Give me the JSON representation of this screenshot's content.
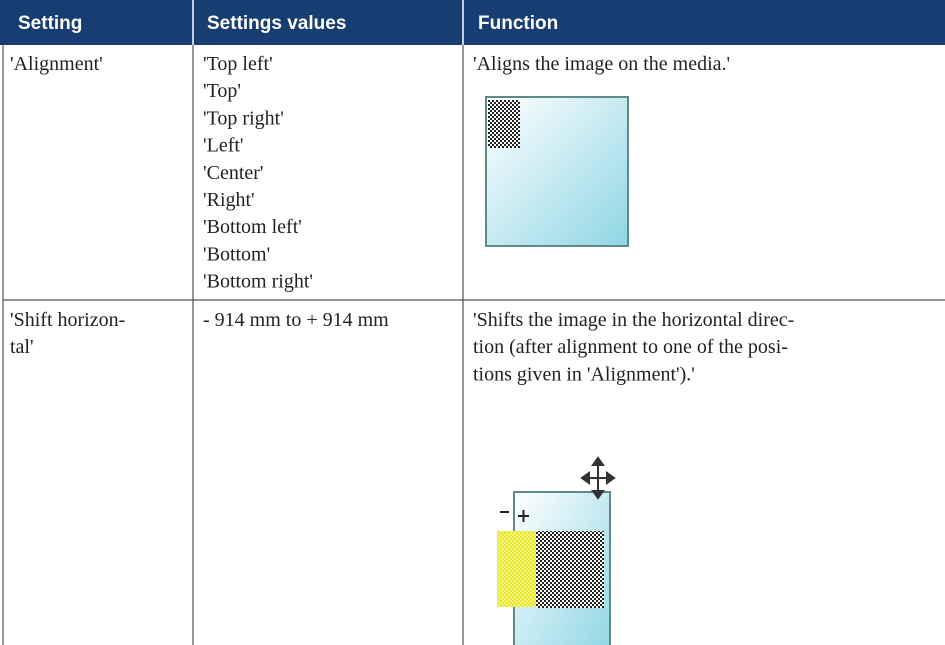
{
  "table": {
    "header": [
      "Setting",
      "Settings values",
      "Function"
    ],
    "rows": [
      {
        "setting": [
          "'Alignment'"
        ],
        "values": [
          "'Top left'",
          "'Top'",
          "'Top right'",
          "'Left'",
          "'Center'",
          "'Right'",
          "'Bottom left'",
          "'Bottom'",
          "'Bottom right'"
        ],
        "function": [
          "'Aligns the image on the media.'"
        ]
      },
      {
        "setting": [
          "'Shift horizon-",
          "tal'"
        ],
        "values": [
          "- 914 mm to + 914 mm"
        ],
        "function": [
          "'Shifts the image in the horizontal direc-",
          "tion (after alignment to one of the posi-",
          "tions given in 'Alignment').'"
        ]
      }
    ]
  }
}
